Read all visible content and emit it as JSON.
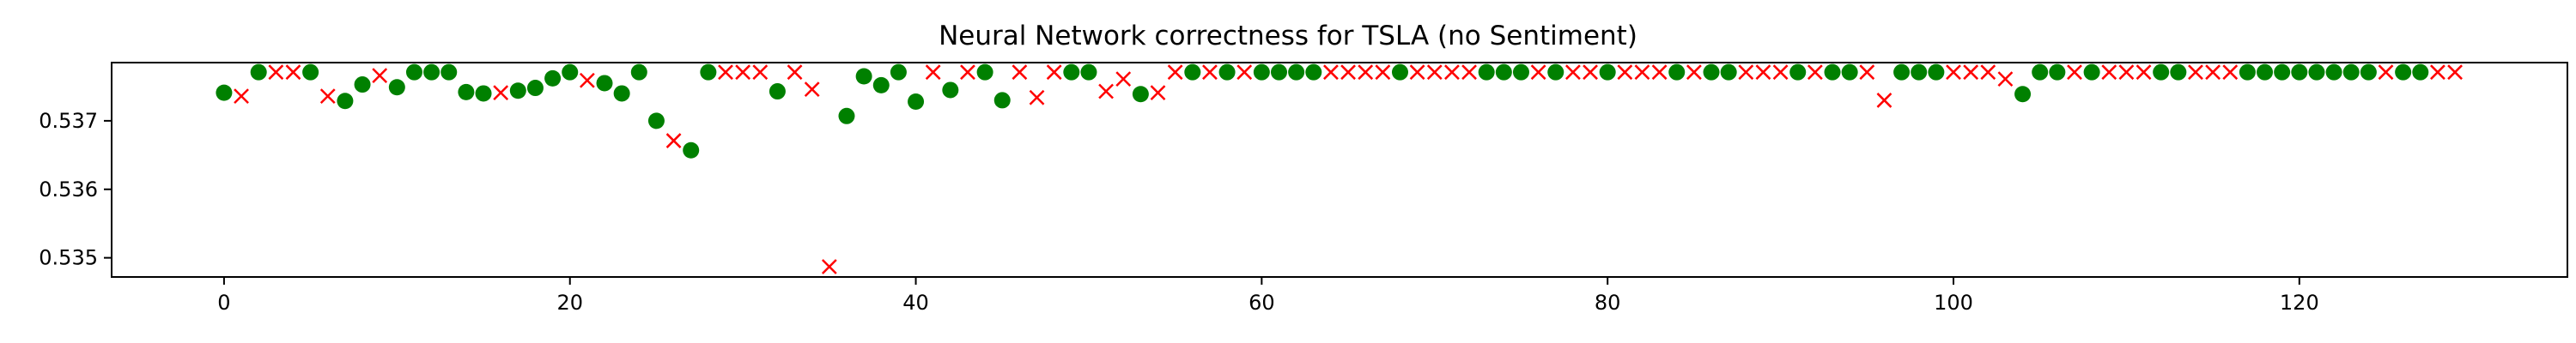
{
  "chart_data": {
    "type": "scatter",
    "title": "Neural Network correctness for TSLA (no Sentiment)",
    "xlabel": "",
    "ylabel": "",
    "xlim": [
      -6.5,
      135.5
    ],
    "ylim": [
      0.53472,
      0.53785
    ],
    "xticks": [
      0,
      20,
      40,
      60,
      80,
      100,
      120
    ],
    "xtick_labels": [
      "0",
      "20",
      "40",
      "60",
      "80",
      "100",
      "120"
    ],
    "yticks": [
      0.535,
      0.536,
      0.537
    ],
    "ytick_labels": [
      "0.535",
      "0.536",
      "0.537"
    ],
    "grid": false,
    "legend": "none",
    "series": [
      {
        "marker": "circle",
        "color": "#008000",
        "points": [
          [
            0,
            0.53741
          ],
          [
            2,
            0.53771
          ],
          [
            5,
            0.53771
          ],
          [
            7,
            0.53729
          ],
          [
            8,
            0.53753
          ],
          [
            10,
            0.53749
          ],
          [
            11,
            0.53771
          ],
          [
            12,
            0.53771
          ],
          [
            13,
            0.53771
          ],
          [
            14,
            0.53742
          ],
          [
            15,
            0.5374
          ],
          [
            17,
            0.53744
          ],
          [
            18,
            0.53748
          ],
          [
            19,
            0.53762
          ],
          [
            20,
            0.53771
          ],
          [
            22,
            0.53755
          ],
          [
            23,
            0.5374
          ],
          [
            24,
            0.53771
          ],
          [
            25,
            0.537
          ],
          [
            27,
            0.53657
          ],
          [
            28,
            0.53771
          ],
          [
            32,
            0.53743
          ],
          [
            36,
            0.53707
          ],
          [
            37,
            0.53765
          ],
          [
            38,
            0.53752
          ],
          [
            39,
            0.53771
          ],
          [
            40,
            0.53728
          ],
          [
            42,
            0.53745
          ],
          [
            44,
            0.53771
          ],
          [
            45,
            0.5373
          ],
          [
            49,
            0.53771
          ],
          [
            50,
            0.53771
          ],
          [
            53,
            0.53739
          ],
          [
            56,
            0.53771
          ],
          [
            58,
            0.53771
          ],
          [
            60,
            0.53771
          ],
          [
            61,
            0.53771
          ],
          [
            62,
            0.53771
          ],
          [
            63,
            0.53771
          ],
          [
            68,
            0.53771
          ],
          [
            73,
            0.53771
          ],
          [
            74,
            0.53771
          ],
          [
            75,
            0.53771
          ],
          [
            77,
            0.53771
          ],
          [
            80,
            0.53771
          ],
          [
            84,
            0.53771
          ],
          [
            86,
            0.53771
          ],
          [
            87,
            0.53771
          ],
          [
            91,
            0.53771
          ],
          [
            93,
            0.53771
          ],
          [
            94,
            0.53771
          ],
          [
            97,
            0.53771
          ],
          [
            98,
            0.53771
          ],
          [
            99,
            0.53771
          ],
          [
            104,
            0.53739
          ],
          [
            105,
            0.53771
          ],
          [
            106,
            0.53771
          ],
          [
            108,
            0.53771
          ],
          [
            112,
            0.53771
          ],
          [
            113,
            0.53771
          ],
          [
            117,
            0.53771
          ],
          [
            118,
            0.53771
          ],
          [
            119,
            0.53771
          ],
          [
            120,
            0.53771
          ],
          [
            121,
            0.53771
          ],
          [
            122,
            0.53771
          ],
          [
            123,
            0.53771
          ],
          [
            124,
            0.53771
          ],
          [
            126,
            0.53771
          ],
          [
            127,
            0.53771
          ]
        ]
      },
      {
        "marker": "x",
        "color": "#ff0000",
        "points": [
          [
            1,
            0.53736
          ],
          [
            3,
            0.53771
          ],
          [
            4,
            0.53771
          ],
          [
            6,
            0.53736
          ],
          [
            9,
            0.53766
          ],
          [
            16,
            0.53741
          ],
          [
            21,
            0.53759
          ],
          [
            26,
            0.53671
          ],
          [
            29,
            0.53771
          ],
          [
            30,
            0.53771
          ],
          [
            31,
            0.53771
          ],
          [
            33,
            0.53771
          ],
          [
            34,
            0.53746
          ],
          [
            35,
            0.53487
          ],
          [
            41,
            0.53771
          ],
          [
            43,
            0.53771
          ],
          [
            46,
            0.53771
          ],
          [
            47,
            0.53734
          ],
          [
            48,
            0.53771
          ],
          [
            51,
            0.53743
          ],
          [
            52,
            0.53761
          ],
          [
            54,
            0.53741
          ],
          [
            55,
            0.53771
          ],
          [
            57,
            0.53771
          ],
          [
            59,
            0.53771
          ],
          [
            64,
            0.53771
          ],
          [
            65,
            0.53771
          ],
          [
            66,
            0.53771
          ],
          [
            67,
            0.53771
          ],
          [
            69,
            0.53771
          ],
          [
            70,
            0.53771
          ],
          [
            71,
            0.53771
          ],
          [
            72,
            0.53771
          ],
          [
            76,
            0.53771
          ],
          [
            78,
            0.53771
          ],
          [
            79,
            0.53771
          ],
          [
            81,
            0.53771
          ],
          [
            82,
            0.53771
          ],
          [
            83,
            0.53771
          ],
          [
            85,
            0.53771
          ],
          [
            88,
            0.53771
          ],
          [
            89,
            0.53771
          ],
          [
            90,
            0.53771
          ],
          [
            92,
            0.53771
          ],
          [
            95,
            0.53771
          ],
          [
            96,
            0.5373
          ],
          [
            100,
            0.53771
          ],
          [
            101,
            0.53771
          ],
          [
            102,
            0.53771
          ],
          [
            103,
            0.53761
          ],
          [
            107,
            0.53771
          ],
          [
            109,
            0.53771
          ],
          [
            110,
            0.53771
          ],
          [
            111,
            0.53771
          ],
          [
            114,
            0.53771
          ],
          [
            115,
            0.53771
          ],
          [
            116,
            0.53771
          ],
          [
            125,
            0.53771
          ],
          [
            128,
            0.53771
          ],
          [
            129,
            0.53771
          ]
        ]
      }
    ]
  }
}
